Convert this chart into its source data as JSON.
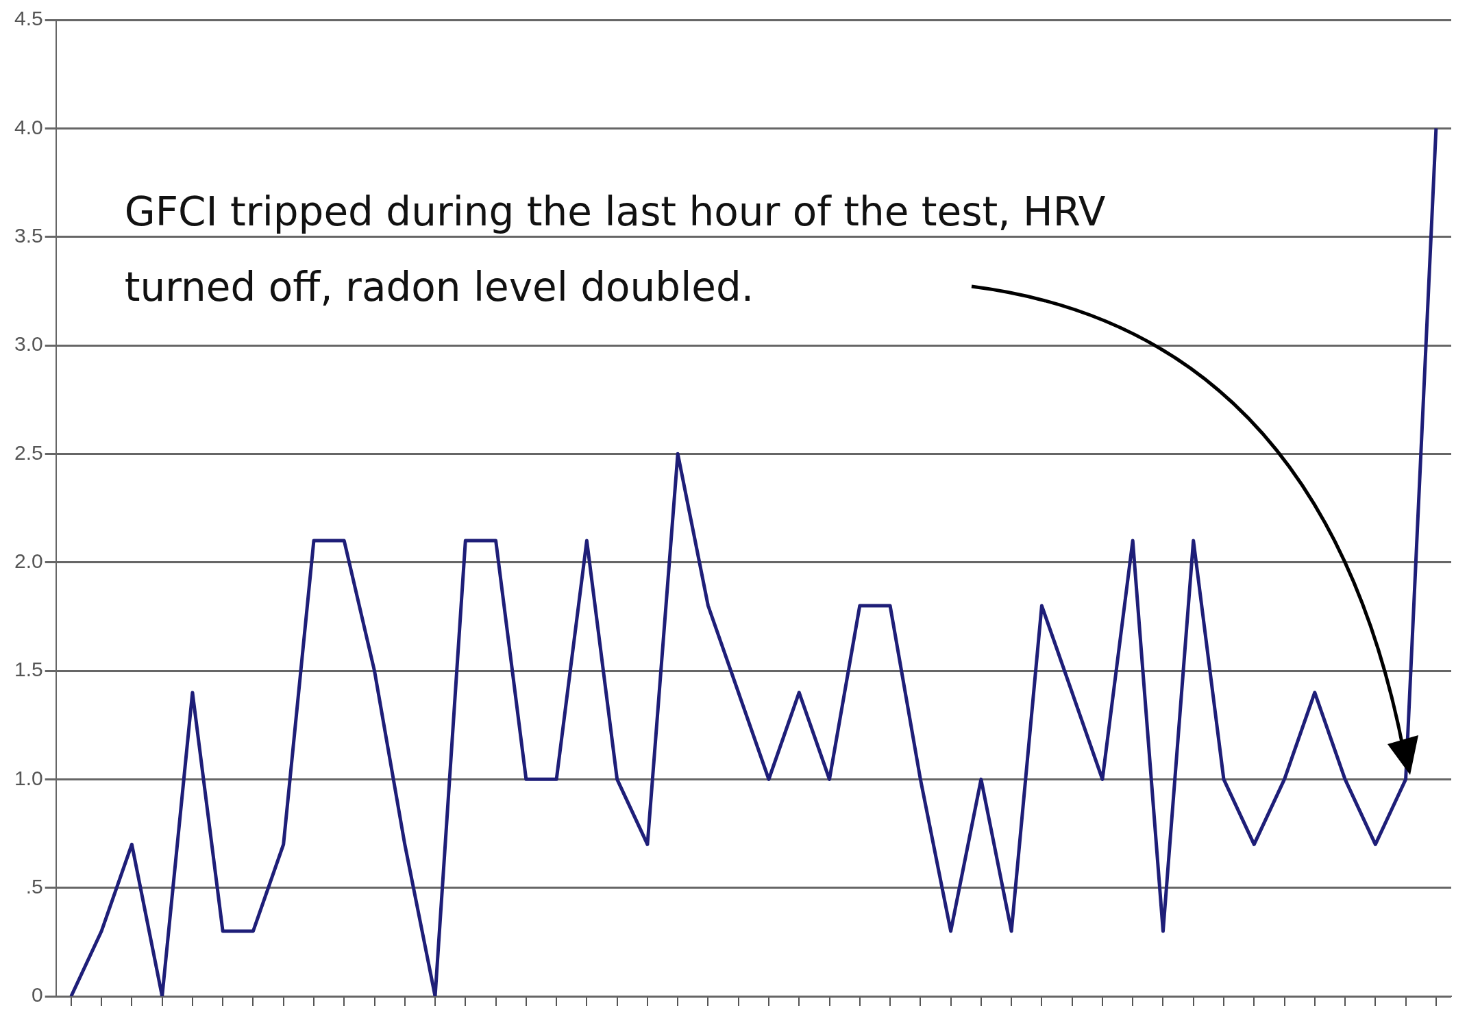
{
  "chart_data": {
    "type": "line",
    "categories": [
      null,
      null,
      null,
      null,
      null,
      null,
      null,
      null,
      null,
      null,
      null,
      null,
      null,
      null,
      null,
      null,
      null,
      null,
      null,
      null,
      null,
      null,
      null,
      null,
      null,
      null,
      null,
      null,
      null,
      null,
      null,
      null,
      null,
      null,
      null,
      null,
      null,
      null,
      null,
      null,
      null,
      null,
      null,
      null,
      null,
      null
    ],
    "values": [
      0,
      0.3,
      0.7,
      0,
      1.4,
      0.3,
      0.3,
      0.7,
      2.1,
      2.1,
      1.5,
      0.7,
      0,
      2.1,
      2.1,
      1.0,
      1.0,
      2.1,
      1.0,
      0.7,
      2.5,
      1.8,
      1.4,
      1.0,
      1.4,
      1.0,
      1.8,
      1.8,
      1.0,
      0.3,
      1.0,
      0.3,
      1.8,
      1.4,
      1.0,
      2.1,
      0.3,
      2.1,
      1.0,
      0.7,
      1.0,
      1.4,
      1.0,
      0.7,
      1.0,
      4.0
    ],
    "color": "#1e1e78",
    "ylim": [
      0,
      4.5
    ],
    "yticks": [
      {
        "value": 0,
        "label": "0"
      },
      {
        "value": 0.5,
        "label": ".5"
      },
      {
        "value": 1,
        "label": "1.0"
      },
      1.5,
      {
        "value": 2,
        "label": "2.0"
      },
      2.5,
      {
        "value": 3,
        "label": "3.0"
      },
      3.5,
      {
        "value": 4,
        "label": "4.0"
      },
      4.5
    ],
    "grid": "y",
    "tick_labels": "y",
    "annotations": [
      "GFCI tripped during the last hour of the test, HRV turned off, radon level doubled."
    ]
  }
}
